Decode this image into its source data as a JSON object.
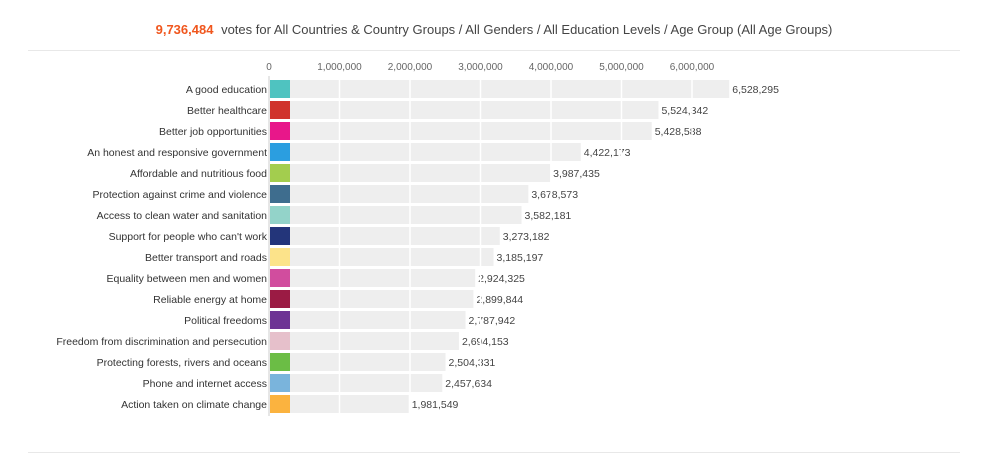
{
  "header": {
    "total": "9,736,484",
    "text": "votes for All Countries & Country Groups / All Genders / All Education Levels / Age Group (All Age Groups)"
  },
  "chart_data": {
    "type": "bar",
    "orientation": "horizontal",
    "xlim": [
      0,
      6700000
    ],
    "ticks": [
      0,
      1000000,
      2000000,
      3000000,
      4000000,
      5000000,
      6000000
    ],
    "tick_labels": [
      "0",
      "1,000,000",
      "2,000,000",
      "3,000,000",
      "4,000,000",
      "5,000,000",
      "6,000,000"
    ],
    "grid": true,
    "categories": [
      "A good education",
      "Better healthcare",
      "Better job opportunities",
      "An honest and responsive government",
      "Affordable and nutritious food",
      "Protection against crime and violence",
      "Access to clean water and sanitation",
      "Support for people who can't work",
      "Better transport and roads",
      "Equality between men and women",
      "Reliable energy at home",
      "Political freedoms",
      "Freedom from discrimination and persecution",
      "Protecting forests, rivers and oceans",
      "Phone and internet access",
      "Action taken on climate change"
    ],
    "values": [
      6528295,
      5524342,
      5428588,
      4422173,
      3987435,
      3678573,
      3582181,
      3273182,
      3185197,
      2924325,
      2899844,
      2787942,
      2694153,
      2504331,
      2457634,
      1981549
    ],
    "value_labels": [
      "6,528,295",
      "5,524,342",
      "5,428,588",
      "4,422,173",
      "3,987,435",
      "3,678,573",
      "3,582,181",
      "3,273,182",
      "3,185,197",
      "2,924,325",
      "2,899,844",
      "2,787,942",
      "2,694,153",
      "2,504,331",
      "2,457,634",
      "1,981,549"
    ],
    "colors": [
      "#4fc3c0",
      "#d0342c",
      "#e8178a",
      "#2b9ee0",
      "#a3cd4e",
      "#3e6d8e",
      "#93d3c9",
      "#23357a",
      "#fce38a",
      "#d14d9e",
      "#9b1b44",
      "#6d3494",
      "#e6c0cb",
      "#6bbd45",
      "#7ab4dc",
      "#fbb33f"
    ],
    "bar_color": "#eeeeee",
    "grid_color": "#ffffff"
  }
}
